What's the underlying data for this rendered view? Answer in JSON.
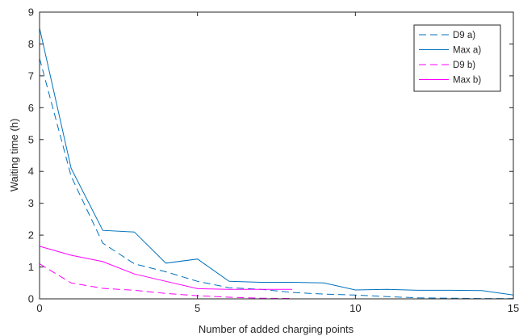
{
  "chart_data": {
    "type": "line",
    "title": "",
    "xlabel": "Number of added charging points",
    "ylabel": "Waiting time (h)",
    "xlim": [
      0,
      15
    ],
    "ylim": [
      0,
      9
    ],
    "xticks": [
      0,
      5,
      10,
      15
    ],
    "yticks": [
      0,
      1,
      2,
      3,
      4,
      5,
      6,
      7,
      8,
      9
    ],
    "legend_position": "top-right",
    "series": [
      {
        "name": "D9 a)",
        "color": "#0072BD",
        "dash": "dashed",
        "x": [
          0,
          1,
          2,
          3,
          4,
          5,
          6,
          7,
          8,
          9,
          10,
          11,
          12,
          13,
          14,
          15
        ],
        "y": [
          7.55,
          3.85,
          1.75,
          1.1,
          0.85,
          0.55,
          0.35,
          0.3,
          0.2,
          0.15,
          0.12,
          0.07,
          0.03,
          0.02,
          0.01,
          0.01
        ]
      },
      {
        "name": "Max a)",
        "color": "#0072BD",
        "dash": "solid",
        "x": [
          0,
          1,
          2,
          3,
          4,
          5,
          6,
          7,
          8,
          9,
          10,
          11,
          12,
          13,
          14,
          15
        ],
        "y": [
          8.5,
          4.1,
          2.15,
          2.1,
          1.12,
          1.25,
          0.55,
          0.52,
          0.52,
          0.5,
          0.28,
          0.3,
          0.27,
          0.27,
          0.26,
          0.12
        ]
      },
      {
        "name": "D9 b)",
        "color": "#FF00FF",
        "dash": "dashed",
        "x": [
          0,
          1,
          2,
          3,
          4,
          5,
          6,
          7,
          8
        ],
        "y": [
          1.1,
          0.5,
          0.33,
          0.27,
          0.17,
          0.1,
          0.05,
          0.02,
          0.01
        ]
      },
      {
        "name": "Max b)",
        "color": "#FF00FF",
        "dash": "solid",
        "x": [
          0,
          1,
          2,
          3,
          4,
          5,
          6,
          7,
          8
        ],
        "y": [
          1.65,
          1.37,
          1.17,
          0.78,
          0.55,
          0.32,
          0.3,
          0.3,
          0.3
        ]
      }
    ]
  }
}
